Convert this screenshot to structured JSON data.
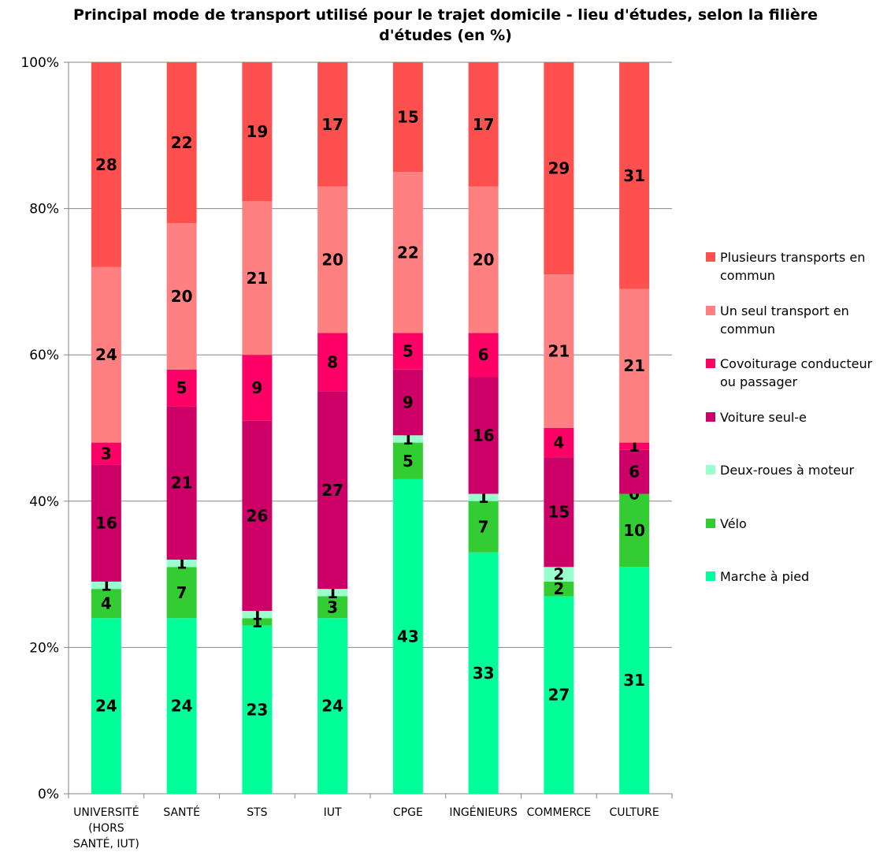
{
  "chart_data": {
    "type": "bar",
    "stacked": true,
    "title": "Principal mode de transport utilisé pour le trajet domicile - lieu d'études, selon la filière d'études (en %)",
    "title_lines": [
      "Principal mode de transport utilisé pour le trajet domicile - lieu d'études, selon la filière",
      "d'études (en %)"
    ],
    "xlabel": "",
    "ylabel": "",
    "ylim": [
      0,
      100
    ],
    "yticks": [
      0,
      20,
      40,
      60,
      80,
      100
    ],
    "ytick_labels": [
      "0%",
      "20%",
      "40%",
      "60%",
      "80%",
      "100%"
    ],
    "grid": true,
    "legend_position": "right",
    "categories": [
      "UNIVERSITÉ (HORS SANTÉ, IUT)",
      "SANTÉ",
      "STS",
      "IUT",
      "CPGE",
      "INGÉNIEURS",
      "COMMERCE",
      "CULTURE"
    ],
    "category_label_lines": [
      [
        "UNIVERSITÉ",
        "(HORS",
        "SANTÉ, IUT)"
      ],
      [
        "SANTÉ"
      ],
      [
        "STS"
      ],
      [
        "IUT"
      ],
      [
        "CPGE"
      ],
      [
        "INGÉNIEURS"
      ],
      [
        "COMMERCE"
      ],
      [
        "CULTURE"
      ]
    ],
    "series": [
      {
        "name": "Marche à pied",
        "color": "#00FF99",
        "values": [
          24,
          24,
          23,
          24,
          43,
          33,
          27,
          31
        ]
      },
      {
        "name": "Vélo",
        "color": "#33CC33",
        "values": [
          4,
          7,
          1,
          3,
          5,
          7,
          2,
          10
        ]
      },
      {
        "name": "Deux-roues à moteur",
        "color": "#99FFCC",
        "values": [
          1,
          1,
          1,
          1,
          1,
          1,
          2,
          0
        ]
      },
      {
        "name": "Voiture seul-e",
        "color": "#CC0066",
        "values": [
          16,
          21,
          26,
          27,
          9,
          16,
          15,
          6
        ]
      },
      {
        "name": "Covoiturage conducteur ou passager",
        "color": "#FF0066",
        "values": [
          3,
          5,
          9,
          8,
          5,
          6,
          4,
          1
        ]
      },
      {
        "name": "Un seul transport en commun",
        "color": "#FF8080",
        "values": [
          24,
          20,
          21,
          20,
          22,
          20,
          21,
          21
        ]
      },
      {
        "name": "Plusieurs transports en commun",
        "color": "#FF5050",
        "values": [
          28,
          22,
          19,
          17,
          15,
          17,
          29,
          31
        ]
      }
    ],
    "legend_order": [
      "Plusieurs transports en commun",
      "Un seul transport en commun",
      "Covoiturage conducteur ou passager",
      "Voiture seul-e",
      "Deux-roues à moteur",
      "Vélo",
      "Marche à pied"
    ],
    "legend_label_lines": {
      "Plusieurs transports en commun": [
        "Plusieurs transports en",
        "commun"
      ],
      "Un seul transport en commun": [
        "Un seul transport en",
        "commun"
      ],
      "Covoiturage conducteur ou passager": [
        "Covoiturage conducteur",
        "ou passager"
      ],
      "Voiture seul-e": [
        "Voiture seul-e"
      ],
      "Deux-roues à moteur": [
        "Deux-roues à moteur"
      ],
      "Vélo": [
        "Vélo"
      ],
      "Marche à pied": [
        "Marche à pied"
      ]
    }
  }
}
